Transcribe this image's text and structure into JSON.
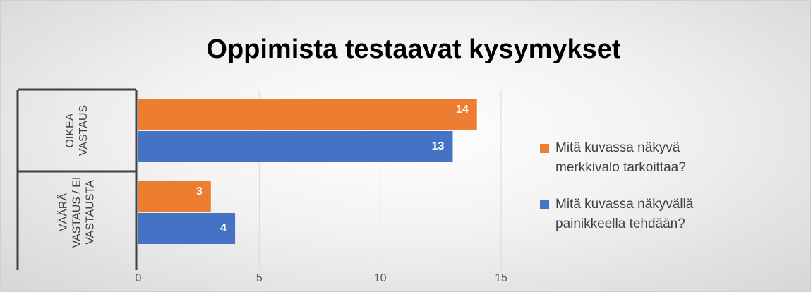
{
  "chart_data": {
    "type": "hbar",
    "title": "Oppimista testaavat kysymykset",
    "categories": [
      "OIKEA VASTAUS",
      "VÄÄRÄ VASTAUS / EI VASTAUSTA"
    ],
    "series": [
      {
        "name": "Mitä kuvassa näkyvä merkkivalo tarkoittaa?",
        "color": "#ed7d31",
        "values": [
          14,
          3
        ]
      },
      {
        "name": "Mitä kuvassa näkyvällä painikkeella tehdään?",
        "color": "#4472c4",
        "values": [
          13,
          4
        ]
      }
    ],
    "xlim": [
      0,
      15
    ],
    "xticks": [
      0,
      5,
      10,
      15
    ],
    "grid": true,
    "legend": "right"
  }
}
